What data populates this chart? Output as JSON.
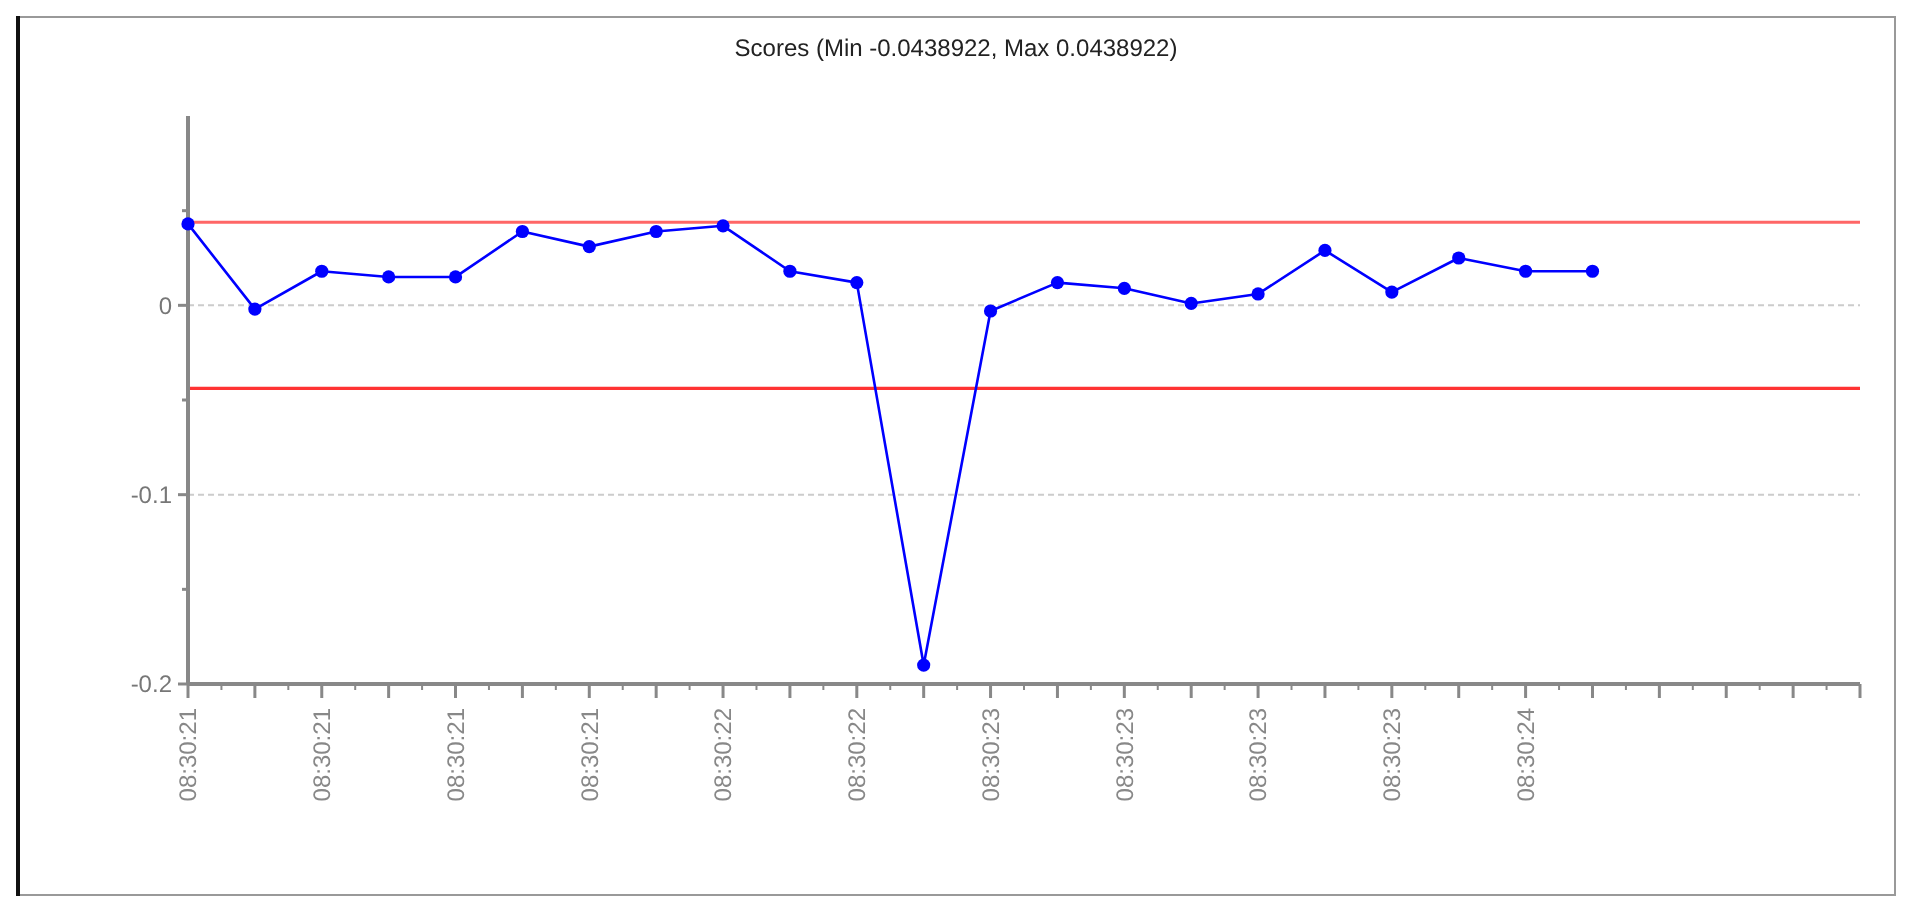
{
  "chart_data": {
    "type": "line",
    "title": "Scores (Min -0.0438922, Max 0.0438922)",
    "categories": [
      "08:30:21",
      null,
      "08:30:21",
      null,
      "08:30:21",
      null,
      "08:30:21",
      null,
      "08:30:22",
      null,
      "08:30:22",
      null,
      "08:30:23",
      null,
      "08:30:23",
      null,
      "08:30:23",
      null,
      "08:30:23",
      null,
      "08:30:24",
      null,
      null,
      null,
      null,
      null
    ],
    "series": [
      {
        "color": "#0000ff",
        "values": [
          0.043,
          -0.002,
          0.018,
          0.015,
          0.015,
          0.039,
          0.031,
          0.039,
          0.042,
          0.018,
          0.012,
          -0.19,
          -0.003,
          0.012,
          0.009,
          0.001,
          0.006,
          0.029,
          0.007,
          0.025,
          0.018,
          0.018,
          null,
          null,
          null,
          null
        ]
      }
    ],
    "ylim": [
      -0.2,
      0.1
    ],
    "yticks": [
      -0.2,
      {
        "value": -0.15,
        "label": null
      },
      -0.1,
      {
        "value": -0.05,
        "label": null
      },
      0,
      {
        "value": 0.05,
        "label": null
      }
    ],
    "ref_lines": [
      {
        "axis": "y",
        "value": 0.0438922,
        "color": "#ff6666"
      },
      {
        "axis": "y",
        "value": -0.0438922,
        "color": "#ff3333"
      }
    ],
    "grid": "y",
    "marker": "circle",
    "line_style": "solid"
  }
}
